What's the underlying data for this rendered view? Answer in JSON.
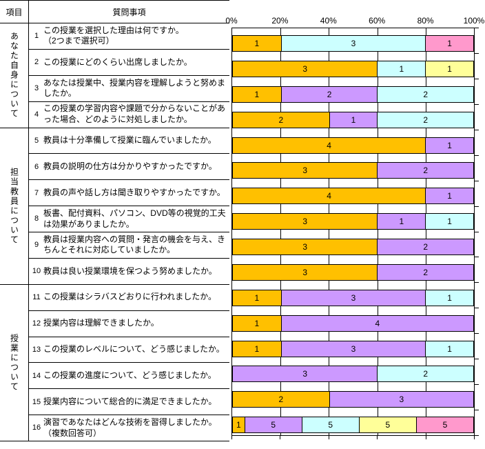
{
  "table": {
    "header": {
      "category_col": "項目",
      "question_col": "質問事項"
    },
    "categories": [
      {
        "label": "あなた自身について",
        "row_span": 4
      },
      {
        "label": "担当教員について",
        "row_span": 6
      },
      {
        "label": "授業について",
        "row_span": 6
      }
    ],
    "questions": [
      {
        "no": "1",
        "text": "この授業を選択した理由は何ですか。\n（2つまで選択可）"
      },
      {
        "no": "2",
        "text": "この授業にどのくらい出席しましたか。"
      },
      {
        "no": "3",
        "text": "あなたは授業中、授業内容を理解しようと努めましたか。"
      },
      {
        "no": "4",
        "text": "この授業の学習内容や課題で分からないことがあった場合、どのように対処しましたか。"
      },
      {
        "no": "5",
        "text": "教員は十分準備して授業に臨んでいましたか。"
      },
      {
        "no": "6",
        "text": "教員の説明の仕方は分かりやすかったですか。"
      },
      {
        "no": "7",
        "text": "教員の声や話し方は聞き取りやすかったですか。"
      },
      {
        "no": "8",
        "text": "板書、配付資料、パソコン、DVD等の視覚的工夫は効果がありましたか。"
      },
      {
        "no": "9",
        "text": "教員は授業内容への質問・発言の機会を与え、きちんとそれに対応していましたか。"
      },
      {
        "no": "10",
        "text": "教員は良い授業環境を保つよう努めましたか。"
      },
      {
        "no": "11",
        "text": "この授業はシラバスどおりに行われましたか。"
      },
      {
        "no": "12",
        "text": "授業内容は理解できましたか。"
      },
      {
        "no": "13",
        "text": "この授業のレベルについて、どう感じましたか。"
      },
      {
        "no": "14",
        "text": "この授業の進度について、どう感じましたか。"
      },
      {
        "no": "15",
        "text": "授業内容について総合的に満足できましたか。"
      },
      {
        "no": "16",
        "text": "演習であなたはどんな技術を習得しましたか。\n（複数回答可）"
      }
    ]
  },
  "chart_data": {
    "type": "bar",
    "variant": "horizontal-stacked",
    "x_axis": {
      "tick_labels": [
        "0%",
        "20%",
        "40%",
        "60%",
        "80%",
        "100%"
      ],
      "min": 0,
      "max": 100,
      "unit": "percent"
    },
    "grid": true,
    "legend": false,
    "colors": {
      "gold": "#FFC000",
      "lavender": "#CC99FF",
      "cyan": "#CCFFFF",
      "yellow": "#FFFF99",
      "pink": "#FF99CC"
    },
    "rows": [
      {
        "question_no": 1,
        "segments": [
          {
            "color": "gold",
            "value": 1
          },
          {
            "color": "cyan",
            "value": 3
          },
          {
            "color": "pink",
            "value": 1
          }
        ]
      },
      {
        "question_no": 2,
        "segments": [
          {
            "color": "gold",
            "value": 3
          },
          {
            "color": "cyan",
            "value": 1
          },
          {
            "color": "yellow",
            "value": 1
          }
        ]
      },
      {
        "question_no": 3,
        "segments": [
          {
            "color": "gold",
            "value": 1
          },
          {
            "color": "lavender",
            "value": 2
          },
          {
            "color": "cyan",
            "value": 2
          }
        ]
      },
      {
        "question_no": 4,
        "segments": [
          {
            "color": "gold",
            "value": 2
          },
          {
            "color": "lavender",
            "value": 1
          },
          {
            "color": "cyan",
            "value": 2
          }
        ]
      },
      {
        "question_no": 5,
        "segments": [
          {
            "color": "gold",
            "value": 4
          },
          {
            "color": "lavender",
            "value": 1
          }
        ]
      },
      {
        "question_no": 6,
        "segments": [
          {
            "color": "gold",
            "value": 3
          },
          {
            "color": "lavender",
            "value": 2
          }
        ]
      },
      {
        "question_no": 7,
        "segments": [
          {
            "color": "gold",
            "value": 4
          },
          {
            "color": "lavender",
            "value": 1
          }
        ]
      },
      {
        "question_no": 8,
        "segments": [
          {
            "color": "gold",
            "value": 3
          },
          {
            "color": "lavender",
            "value": 1
          },
          {
            "color": "cyan",
            "value": 1
          }
        ]
      },
      {
        "question_no": 9,
        "segments": [
          {
            "color": "gold",
            "value": 3
          },
          {
            "color": "lavender",
            "value": 2
          }
        ]
      },
      {
        "question_no": 10,
        "segments": [
          {
            "color": "gold",
            "value": 3
          },
          {
            "color": "lavender",
            "value": 2
          }
        ]
      },
      {
        "question_no": 11,
        "segments": [
          {
            "color": "gold",
            "value": 1
          },
          {
            "color": "lavender",
            "value": 3
          },
          {
            "color": "cyan",
            "value": 1
          }
        ]
      },
      {
        "question_no": 12,
        "segments": [
          {
            "color": "gold",
            "value": 1
          },
          {
            "color": "lavender",
            "value": 4
          }
        ]
      },
      {
        "question_no": 13,
        "segments": [
          {
            "color": "gold",
            "value": 1
          },
          {
            "color": "lavender",
            "value": 3
          },
          {
            "color": "cyan",
            "value": 1
          }
        ]
      },
      {
        "question_no": 14,
        "segments": [
          {
            "color": "lavender",
            "value": 3
          },
          {
            "color": "cyan",
            "value": 2
          }
        ]
      },
      {
        "question_no": 15,
        "segments": [
          {
            "color": "gold",
            "value": 2
          },
          {
            "color": "lavender",
            "value": 3
          }
        ]
      },
      {
        "question_no": 16,
        "segments": [
          {
            "color": "gold",
            "value": 1
          },
          {
            "color": "lavender",
            "value": 5
          },
          {
            "color": "cyan",
            "value": 5
          },
          {
            "color": "yellow",
            "value": 5
          },
          {
            "color": "pink",
            "value": 5
          }
        ]
      }
    ]
  }
}
